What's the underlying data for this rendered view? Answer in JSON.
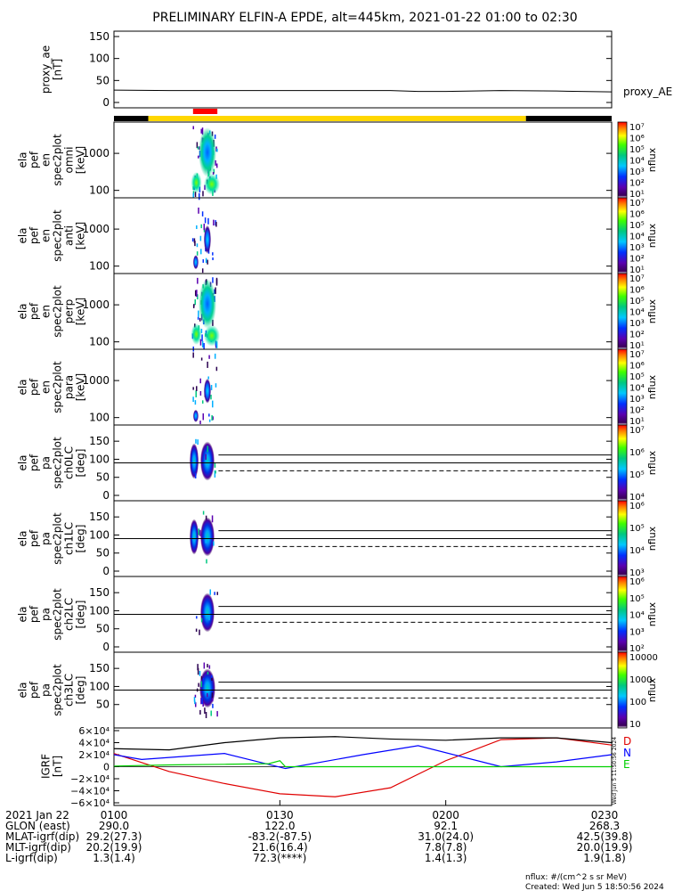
{
  "title": "PRELIMINARY ELFIN-A EPDE, alt=445km, 2021-01-22 01:00 to 02:30",
  "colors": {
    "sun_bar": "#ffd700",
    "shadow_bar": "#000000",
    "science_zone": "#ff0000",
    "igrf_d": "#e00000",
    "igrf_n": "#0000ff",
    "igrf_e": "#00d000",
    "igrf_total": "#000000"
  },
  "chart_data": [
    {
      "type": "line",
      "id": "proxy_ae",
      "ylabel": [
        "proxy_ae",
        "[nT]"
      ],
      "yticks": [
        "150",
        "100",
        "50",
        "0"
      ],
      "ylim": [
        0,
        150
      ],
      "series": [
        {
          "name": "proxy_AE",
          "x_minutes": [
            0,
            10,
            20,
            30,
            40,
            50,
            55,
            60,
            70,
            80,
            90
          ],
          "values": [
            28,
            27,
            27,
            27,
            27,
            27,
            25,
            25,
            27,
            26,
            24
          ]
        }
      ]
    },
    {
      "type": "bar",
      "id": "orbit_bar",
      "segments": [
        {
          "from_min": 0,
          "to_min": 6.2,
          "state": "shadow"
        },
        {
          "from_min": 6.2,
          "to_min": 74.5,
          "state": "sun"
        },
        {
          "from_min": 74.5,
          "to_min": 90,
          "state": "shadow"
        }
      ],
      "science_zone": {
        "from_min": 14.3,
        "to_min": 18.7
      }
    },
    {
      "type": "heatmap",
      "id": "en_omni",
      "ylabel": [
        "ela",
        "pef",
        "en",
        "spec2plot",
        "omni",
        "[keV]"
      ],
      "yticks": [
        "1000",
        "100"
      ],
      "ylim": [
        63,
        7000
      ],
      "yscale": "log",
      "zlabel": "nflux",
      "zticks": [
        "10⁷",
        "10⁶",
        "10⁵",
        "10⁴",
        "10³",
        "10²",
        "10¹"
      ]
    },
    {
      "type": "heatmap",
      "id": "en_anti",
      "ylabel": [
        "ela",
        "pef",
        "en",
        "spec2plot",
        "anti",
        "[keV]"
      ],
      "yticks": [
        "1000",
        "100"
      ],
      "ylim": [
        63,
        7000
      ],
      "yscale": "log",
      "zlabel": "nflux",
      "zticks": [
        "10⁷",
        "10⁶",
        "10⁵",
        "10⁴",
        "10³",
        "10²",
        "10¹"
      ]
    },
    {
      "type": "heatmap",
      "id": "en_perp",
      "ylabel": [
        "ela",
        "pef",
        "en",
        "spec2plot",
        "perp",
        "[keV]"
      ],
      "yticks": [
        "1000",
        "100"
      ],
      "ylim": [
        63,
        7000
      ],
      "yscale": "log",
      "zlabel": "nflux",
      "zticks": [
        "10⁷",
        "10⁶",
        "10⁵",
        "10⁴",
        "10³",
        "10²",
        "10¹"
      ]
    },
    {
      "type": "heatmap",
      "id": "en_para",
      "ylabel": [
        "ela",
        "pef",
        "en",
        "spec2plot",
        "para",
        "[keV]"
      ],
      "yticks": [
        "1000",
        "100"
      ],
      "ylim": [
        63,
        7000
      ],
      "yscale": "log",
      "zlabel": "nflux",
      "zticks": [
        "10⁷",
        "10⁶",
        "10⁵",
        "10⁴",
        "10³",
        "10²",
        "10¹"
      ]
    },
    {
      "type": "heatmap",
      "id": "pa_ch0LC",
      "ylabel": [
        "ela",
        "pef",
        "pa",
        "spec2plot",
        "ch0LC",
        "[deg]"
      ],
      "yticks": [
        "150",
        "100",
        "50",
        "0"
      ],
      "ylim": [
        0,
        180
      ],
      "zlabel": "nflux",
      "zticks": [
        "10⁷",
        "10⁶",
        "10⁵",
        "10⁴"
      ]
    },
    {
      "type": "heatmap",
      "id": "pa_ch1LC",
      "ylabel": [
        "ela",
        "pef",
        "pa",
        "spec2plot",
        "ch1LC",
        "[deg]"
      ],
      "yticks": [
        "150",
        "100",
        "50",
        "0"
      ],
      "ylim": [
        0,
        180
      ],
      "zlabel": "nflux",
      "zticks": [
        "10⁶",
        "10⁵",
        "10⁴",
        "10³"
      ]
    },
    {
      "type": "heatmap",
      "id": "pa_ch2LC",
      "ylabel": [
        "ela",
        "pef",
        "pa",
        "spec2plot",
        "ch2LC",
        "[deg]"
      ],
      "yticks": [
        "150",
        "100",
        "50",
        "0"
      ],
      "ylim": [
        0,
        180
      ],
      "zlabel": "nflux",
      "zticks": [
        "10⁶",
        "10⁵",
        "10⁴",
        "10³",
        "10²"
      ]
    },
    {
      "type": "heatmap",
      "id": "pa_ch3LC",
      "ylabel": [
        "ela",
        "pef",
        "pa",
        "spec2plot",
        "ch3LC",
        "[deg]"
      ],
      "yticks": [
        "150",
        "100",
        "50"
      ],
      "ylim": [
        0,
        180
      ],
      "zlabel": "nflux",
      "zticks": [
        "10000",
        "1000",
        "100",
        "10"
      ]
    },
    {
      "type": "line",
      "id": "igrf",
      "ylabel": [
        "IGRF",
        "[nT]"
      ],
      "yticks": [
        "6×10⁴",
        "4×10⁴",
        "2×10⁴",
        "0",
        "−2×10⁴",
        "−4×10⁴",
        "−6×10⁴"
      ],
      "ylim": [
        -60000,
        60000
      ],
      "legend": [
        "D",
        "N",
        "E"
      ],
      "series": [
        {
          "name": "D",
          "x_minutes": [
            0,
            10,
            20,
            30,
            40,
            50,
            60,
            70,
            80,
            90
          ],
          "values": [
            22000,
            -8000,
            -28000,
            -45000,
            -50000,
            -35000,
            10000,
            45000,
            48000,
            36000
          ]
        },
        {
          "name": "N",
          "x_minutes": [
            0,
            5,
            20,
            31,
            45,
            55,
            70,
            80,
            90
          ],
          "values": [
            20000,
            12000,
            22000,
            -3000,
            20000,
            35000,
            0,
            8000,
            20000
          ]
        },
        {
          "name": "E",
          "x_minutes": [
            0,
            10,
            20,
            28,
            30,
            31,
            40,
            60,
            80,
            90
          ],
          "values": [
            1000,
            3000,
            4000,
            5000,
            10000,
            0,
            0,
            0,
            0,
            0
          ]
        },
        {
          "name": "total",
          "x_minutes": [
            0,
            10,
            20,
            30,
            40,
            50,
            60,
            70,
            80,
            90
          ],
          "values": [
            30000,
            28000,
            40000,
            48000,
            50000,
            46000,
            44000,
            48000,
            48000,
            40000
          ]
        }
      ]
    }
  ],
  "xaxis": {
    "tick_labels": [
      "0100",
      "0130",
      "0200",
      "0230"
    ],
    "rows": [
      {
        "label": "2021 Jan 22",
        "values": [
          "0100",
          "0130",
          "0200",
          "0230"
        ]
      },
      {
        "label": "GLON (east)",
        "values": [
          "290.0",
          "122.0",
          "92.1",
          "268.3"
        ]
      },
      {
        "label": "MLAT-igrf(dip)",
        "values": [
          "29.2(27.3)",
          "-83.2(-87.5)",
          "31.0(24.0)",
          "42.5(39.8)"
        ]
      },
      {
        "label": "MLT-igrf(dip)",
        "values": [
          "20.2(19.9)",
          "21.6(16.4)",
          "7.8(7.8)",
          "20.0(19.9)"
        ]
      },
      {
        "label": "L-igrf(dip)",
        "values": [
          "1.3(1.4)",
          "72.3(****)",
          "1.4(1.3)",
          "1.9(1.8)"
        ]
      }
    ]
  },
  "footer": {
    "units": "nflux: #/(cm^2 s sr MeV)",
    "created": "Created: Wed Jun  5 18:50:56 2024",
    "stamp": "Wed Jun  5 11:50:56 2024"
  }
}
